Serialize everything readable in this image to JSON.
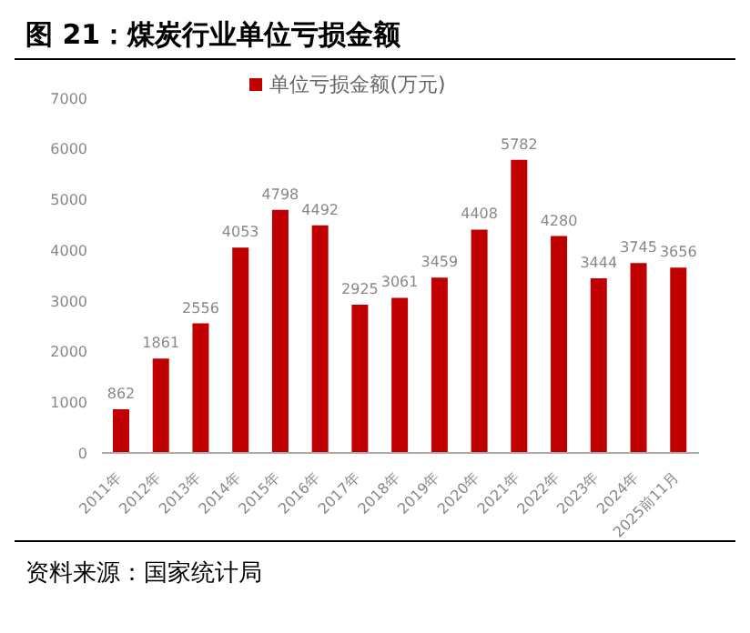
{
  "chart_data": {
    "type": "bar",
    "title": "图 21：煤炭行业单位亏损金额",
    "categories": [
      "2011年",
      "2012年",
      "2013年",
      "2014年",
      "2015年",
      "2016年",
      "2017年",
      "2018年",
      "2019年",
      "2020年",
      "2021年",
      "2022年",
      "2023年",
      "2024年",
      "2025前11月"
    ],
    "series": [
      {
        "name": "单位亏损金额(万元)",
        "color": "#c00000",
        "values": [
          862,
          1861,
          2556,
          4053,
          4798,
          4492,
          2925,
          3061,
          3459,
          4408,
          5782,
          4280,
          3444,
          3745,
          3656
        ]
      }
    ],
    "ylim": [
      0,
      7000
    ],
    "yticks": [
      0,
      1000,
      2000,
      3000,
      4000,
      5000,
      6000,
      7000
    ],
    "grid": false,
    "legend": "top",
    "data_labels": true,
    "annotations": [
      "资料来源：国家统计局"
    ]
  }
}
